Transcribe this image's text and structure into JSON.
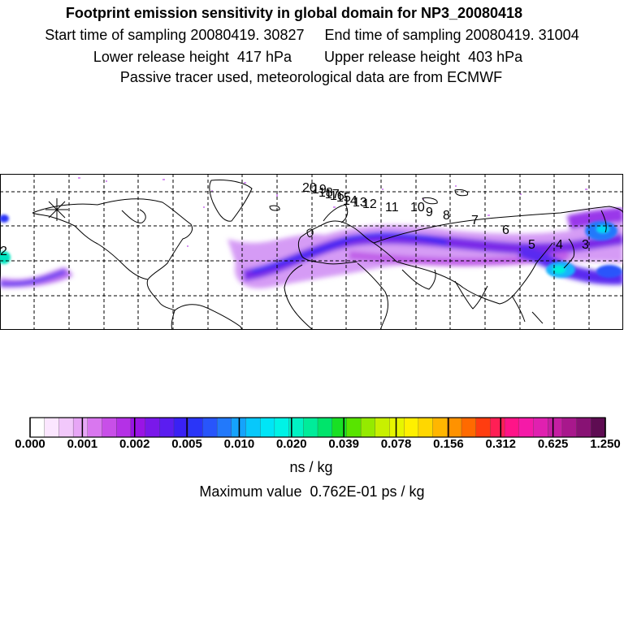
{
  "header": {
    "title": "Footprint emission sensitivity in global domain for NP3_20080418",
    "line2": "Start time of sampling 20080419. 30827     End time of sampling 20080419. 31004",
    "line3": "Lower release height  417 hPa        Upper release height  403 hPa",
    "line4": "Passive tracer used, meteorological data are from ECMWF"
  },
  "map": {
    "track_labels": [
      "20",
      "19",
      "18",
      "17",
      "16",
      "15",
      "14",
      "13",
      "12",
      "11",
      "10",
      "9",
      "8",
      "7",
      "6",
      "5",
      "4",
      "3",
      "2"
    ],
    "release_marker": "asterisk",
    "colors": {
      "coast": "#000000",
      "grid": "#000000"
    }
  },
  "colorbar": {
    "colors": [
      "#ffffff",
      "#fbe6ff",
      "#f2c8fb",
      "#e7a6f6",
      "#d977ef",
      "#c84fe8",
      "#b431e6",
      "#9a14e5",
      "#7a18ea",
      "#5b1df0",
      "#3a21f4",
      "#2a35f8",
      "#2855fb",
      "#2279fb",
      "#15a3fb",
      "#08c8fb",
      "#00e5f6",
      "#00f3e6",
      "#00f2c3",
      "#00ec9a",
      "#00e46b",
      "#19e024",
      "#58e400",
      "#95ea00",
      "#c8f000",
      "#e6f500",
      "#fff000",
      "#ffd700",
      "#ffb600",
      "#ff9200",
      "#ff6a00",
      "#ff3d10",
      "#ff1f55",
      "#ff1488",
      "#f51aa8",
      "#e020b0",
      "#c51ea2",
      "#a8188c",
      "#881274",
      "#5e0c52"
    ],
    "tick_labels": [
      "0.000",
      "0.001",
      "0.002",
      "0.005",
      "0.010",
      "0.020",
      "0.039",
      "0.078",
      "0.156",
      "0.312",
      "0.625",
      "1.250"
    ],
    "units": "ns / kg",
    "max_value_text": "Maximum value  0.762E-01 ps / kg"
  }
}
